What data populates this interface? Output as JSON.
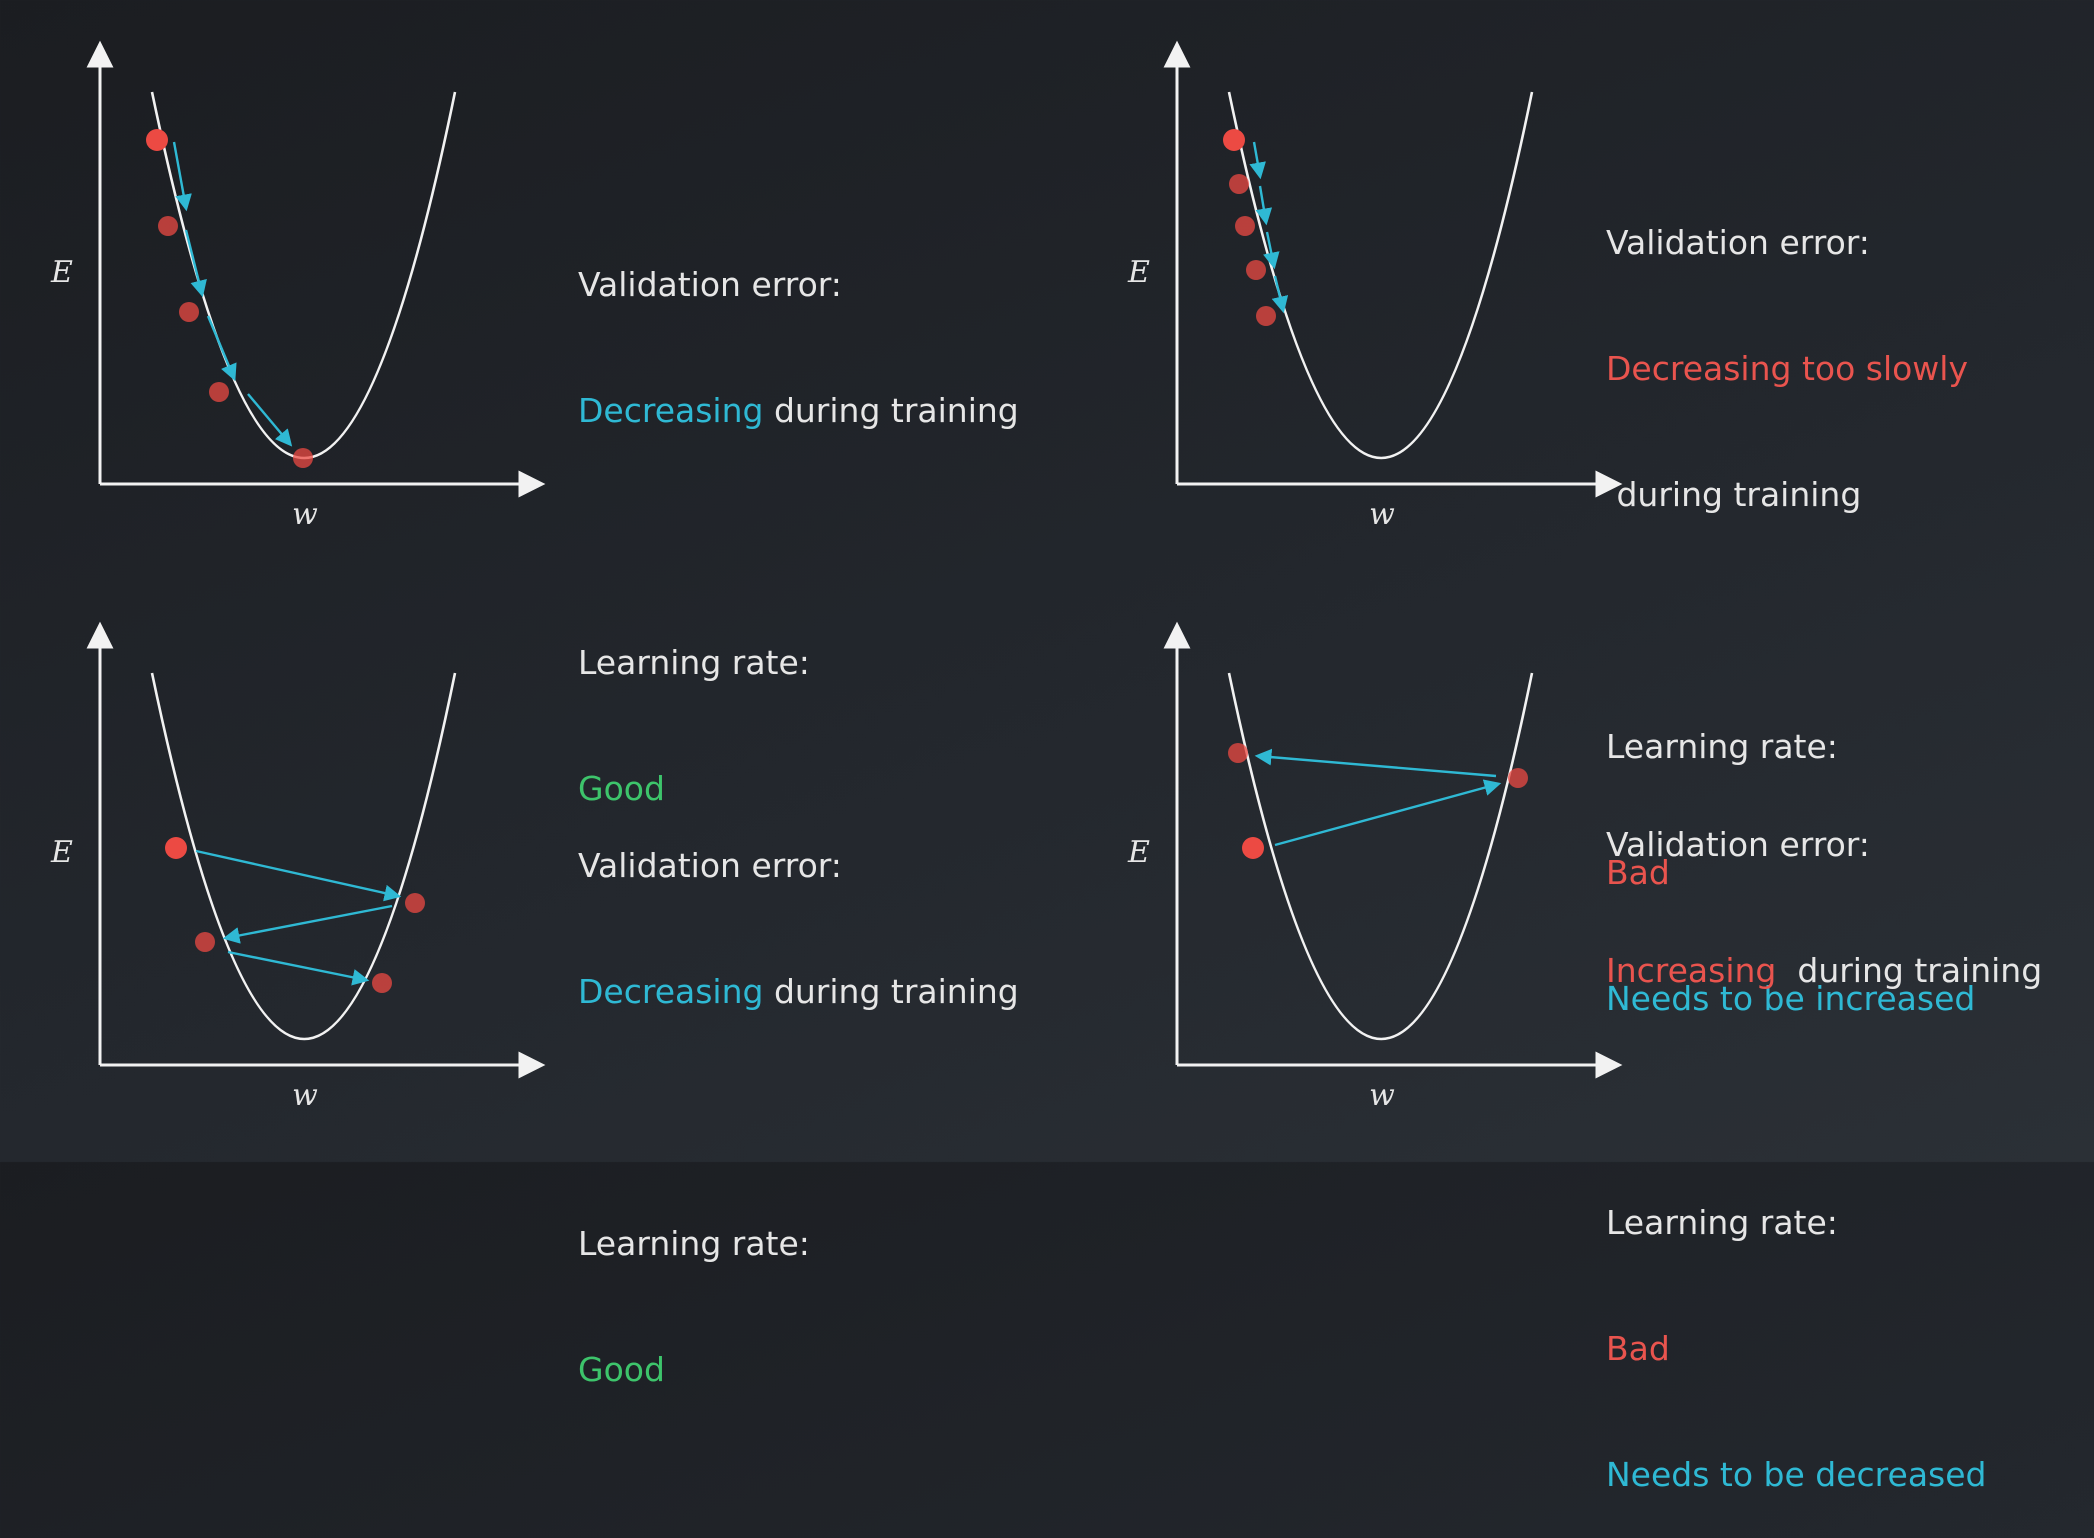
{
  "colors": {
    "background": "#202328",
    "axis": "#f2f2f2",
    "curve": "#f2f2f2",
    "point": "#ec4a43",
    "arrow": "#2fb9d4",
    "good": "#3dc46b",
    "bad": "#e9544e",
    "highlight": "#2fb9d4",
    "text": "#e6e6e6"
  },
  "panels": [
    {
      "id": "top-left",
      "axis_labels": {
        "y": "E",
        "x": "w"
      },
      "text": {
        "validation_label": "Validation error:",
        "status_word": "Decreasing",
        "status_tail": " during training",
        "learning_label": "Learning rate:",
        "rate_value": "Good"
      }
    },
    {
      "id": "top-right",
      "axis_labels": {
        "y": "E",
        "x": "w"
      },
      "text": {
        "validation_label": "Validation error:",
        "status_word": "Decreasing too slowly",
        "status_tail": " during training",
        "learning_label": "Learning rate:",
        "rate_value": "Bad",
        "advice": "Needs to be increased"
      }
    },
    {
      "id": "bottom-left",
      "axis_labels": {
        "y": "E",
        "x": "w"
      },
      "text": {
        "validation_label": "Validation error:",
        "status_word": "Decreasing",
        "status_tail": " during training",
        "learning_label": "Learning rate:",
        "rate_value": "Good"
      }
    },
    {
      "id": "bottom-right",
      "axis_labels": {
        "y": "E",
        "x": "w"
      },
      "text": {
        "validation_label": "Validation error:",
        "status_word": "Increasing",
        "status_tail": "  during training",
        "learning_label": "Learning rate:",
        "rate_value": "Bad",
        "advice": "Needs to be decreased"
      }
    }
  ]
}
